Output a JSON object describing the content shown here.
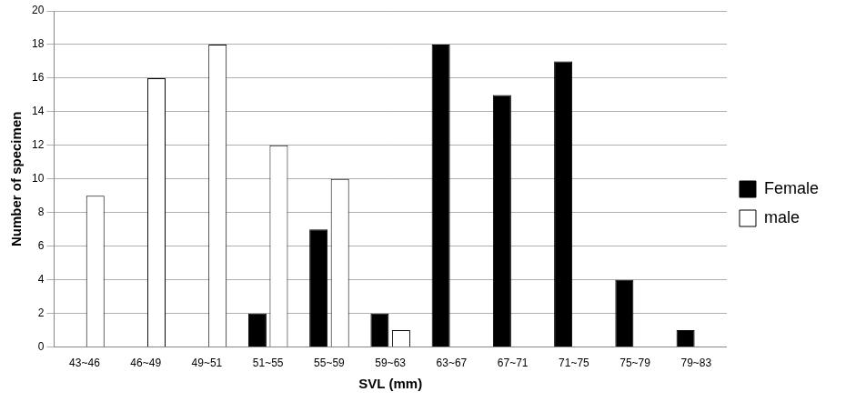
{
  "chart_data": {
    "type": "bar",
    "x_label": "SVL (mm)",
    "y_label": "Number of specimen",
    "categories": [
      "43~46",
      "46~49",
      "49~51",
      "51~55",
      "55~59",
      "59~63",
      "63~67",
      "67~71",
      "71~75",
      "75~79",
      "79~83"
    ],
    "series": [
      {
        "name": "Female",
        "color": "#000000",
        "values": [
          0,
          0,
          0,
          2,
          7,
          2,
          18,
          15,
          17,
          4,
          1
        ]
      },
      {
        "name": "male",
        "color": "#ffffff",
        "values": [
          9,
          16,
          18,
          12,
          10,
          1,
          0,
          0,
          0,
          0,
          0
        ]
      }
    ],
    "ylim": [
      0,
      20
    ],
    "yticks": [
      0,
      2,
      4,
      6,
      8,
      10,
      12,
      14,
      16,
      18,
      20
    ],
    "grid": true,
    "legend": "right"
  }
}
